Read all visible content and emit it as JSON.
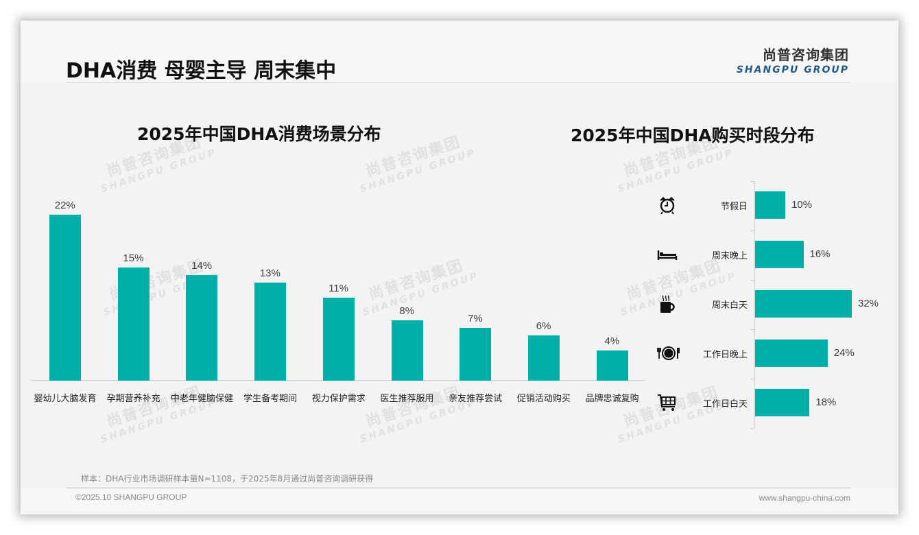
{
  "header": {
    "title": "DHA消费 母婴主导 周末集中",
    "logo_cn": "尚普咨询集团",
    "logo_en": "SHANGPU GROUP"
  },
  "watermark": {
    "cn": "尚普咨询集团",
    "en": "SHANGPU GROUP"
  },
  "colors": {
    "bar": "#00b0a8",
    "logo_en": "#1e5a8a",
    "background": "#f3f3f3"
  },
  "left_chart": {
    "title": "2025年中国DHA消费场景分布",
    "items": [
      {
        "label": "婴幼儿大脑发育",
        "value": 22,
        "display": "22%"
      },
      {
        "label": "孕期营养补充",
        "value": 15,
        "display": "15%"
      },
      {
        "label": "中老年健脑保健",
        "value": 14,
        "display": "14%"
      },
      {
        "label": "学生备考期间",
        "value": 13,
        "display": "13%"
      },
      {
        "label": "视力保护需求",
        "value": 11,
        "display": "11%"
      },
      {
        "label": "医生推荐服用",
        "value": 8,
        "display": "8%"
      },
      {
        "label": "亲友推荐尝试",
        "value": 7,
        "display": "7%"
      },
      {
        "label": "促销活动购买",
        "value": 6,
        "display": "6%"
      },
      {
        "label": "品牌忠诚复购",
        "value": 4,
        "display": "4%"
      }
    ]
  },
  "right_chart": {
    "title": "2025年中国DHA购买时段分布",
    "items": [
      {
        "label": "节假日",
        "value": 10,
        "display": "10%",
        "icon": "alarm-clock-icon"
      },
      {
        "label": "周末晚上",
        "value": 16,
        "display": "16%",
        "icon": "bed-icon"
      },
      {
        "label": "周末白天",
        "value": 32,
        "display": "32%",
        "icon": "coffee-mug-icon"
      },
      {
        "label": "工作日晚上",
        "value": 24,
        "display": "24%",
        "icon": "dining-plate-icon"
      },
      {
        "label": "工作日白天",
        "value": 18,
        "display": "18%",
        "icon": "shopping-cart-icon"
      }
    ]
  },
  "footer": {
    "note": "样本：DHA行业市场调研样本量N=1108，于2025年8月通过尚普咨询调研获得",
    "copyright": "©2025.10 SHANGPU GROUP",
    "website": "www.shangpu-china.com"
  },
  "chart_data": [
    {
      "type": "bar",
      "title": "2025年中国DHA消费场景分布",
      "categories": [
        "婴幼儿大脑发育",
        "孕期营养补充",
        "中老年健脑保健",
        "学生备考期间",
        "视力保护需求",
        "医生推荐服用",
        "亲友推荐尝试",
        "促销活动购买",
        "品牌忠诚复购"
      ],
      "values": [
        22,
        15,
        14,
        13,
        11,
        8,
        7,
        6,
        4
      ],
      "unit": "%",
      "xlabel": "",
      "ylabel": "",
      "ylim": [
        0,
        24
      ],
      "grid": false,
      "legend": "none",
      "data_labels": true
    },
    {
      "type": "bar",
      "orientation": "horizontal",
      "title": "2025年中国DHA购买时段分布",
      "categories": [
        "节假日",
        "周末晚上",
        "周末白天",
        "工作日晚上",
        "工作日白天"
      ],
      "values": [
        10,
        16,
        32,
        24,
        18
      ],
      "unit": "%",
      "xlabel": "",
      "ylabel": "",
      "xlim": [
        0,
        34
      ],
      "grid": false,
      "legend": "none",
      "data_labels": true
    }
  ]
}
